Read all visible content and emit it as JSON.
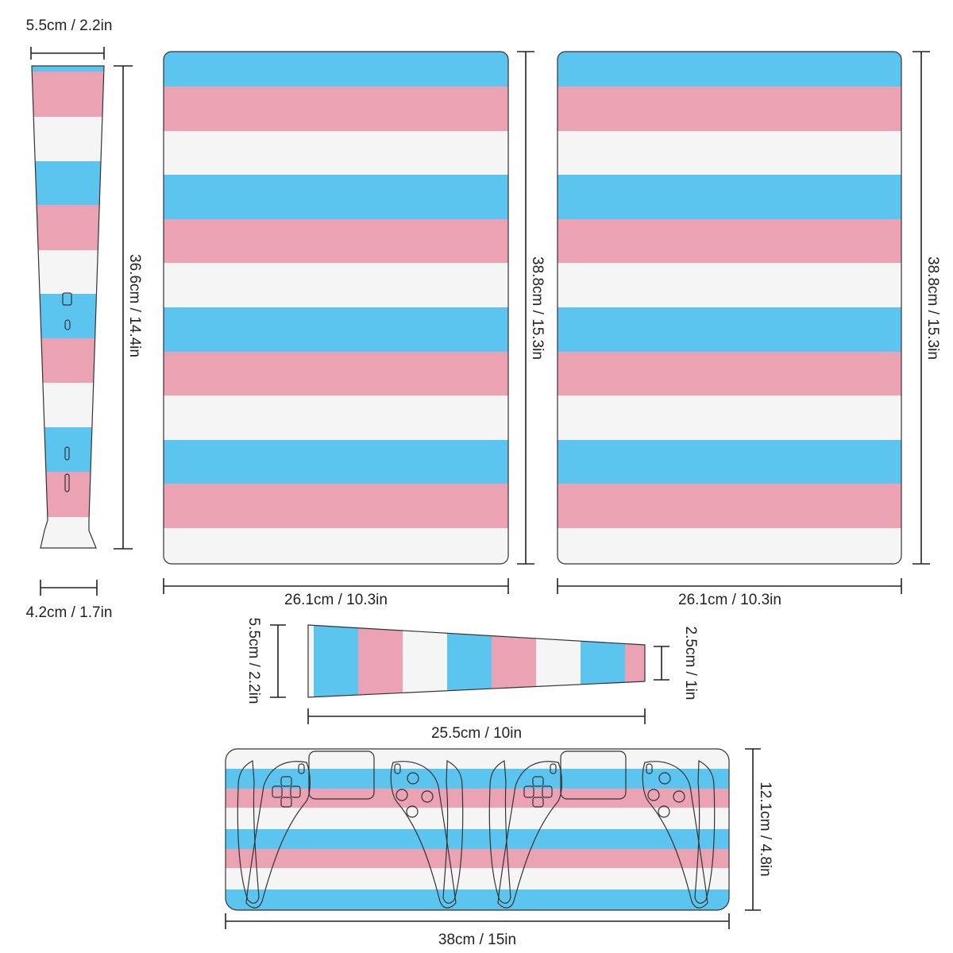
{
  "colors": {
    "blue": "#5bc5ef",
    "pink": "#eba2b3",
    "white": "#f5f5f5"
  },
  "pieces": {
    "side_strip": {
      "top_width": "5.5cm / 2.2in",
      "height": "36.6cm / 14.4in",
      "bottom_width": "4.2cm / 1.7in"
    },
    "panel_left": {
      "height": "38.8cm / 15.3in",
      "width": "26.1cm / 10.3in"
    },
    "panel_right": {
      "height": "38.8cm / 15.3in",
      "width": "26.1cm / 10.3in"
    },
    "wedge_strip": {
      "left_height": "5.5cm / 2.2in",
      "right_height": "2.5cm / 1in",
      "length": "25.5cm / 10in"
    },
    "controller_sheet": {
      "height": "12.1cm / 4.8in",
      "width": "38cm / 15in"
    }
  }
}
